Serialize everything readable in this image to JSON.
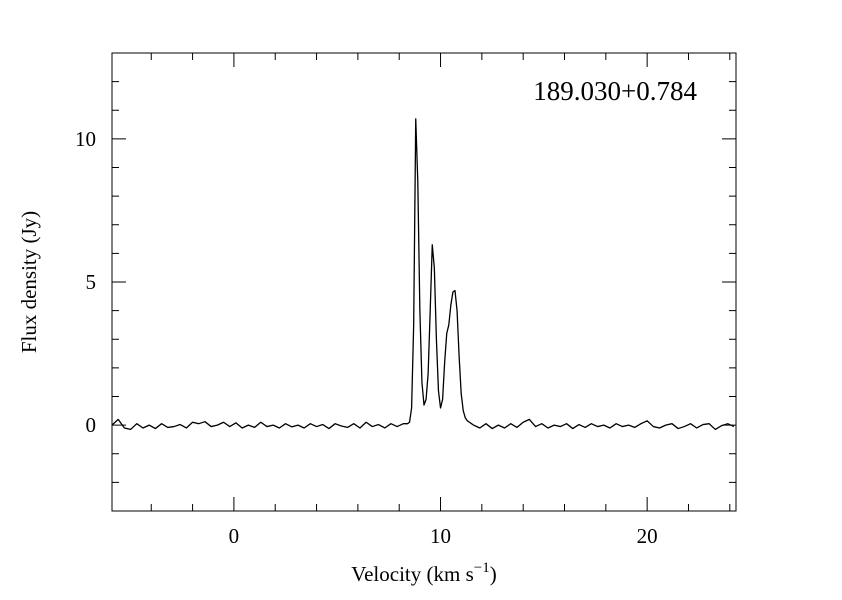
{
  "chart_data": {
    "type": "line",
    "annotation": "189.030+0.784",
    "x_label": "Velocity (km s",
    "x_label_sup": "−1",
    "x_label_end": ")",
    "y_label": "Flux density (Jy)",
    "color": "#000000",
    "xlim": [
      -5.9,
      24.3
    ],
    "ylim": [
      -3,
      13
    ],
    "xticks": [
      0,
      10,
      20
    ],
    "yticks": [
      0,
      5,
      10
    ],
    "xminorticks": [
      -4,
      -2,
      2,
      4,
      6,
      8,
      12,
      14,
      16,
      18,
      22,
      24
    ],
    "yminorticks": [
      -2,
      -1,
      1,
      2,
      3,
      4,
      6,
      7,
      8,
      9,
      11,
      12
    ],
    "x": [
      -5.9,
      -5.6,
      -5.3,
      -5.0,
      -4.7,
      -4.4,
      -4.1,
      -3.8,
      -3.5,
      -3.2,
      -2.9,
      -2.6,
      -2.3,
      -2.0,
      -1.7,
      -1.4,
      -1.1,
      -0.8,
      -0.5,
      -0.2,
      0.1,
      0.4,
      0.7,
      1.0,
      1.3,
      1.6,
      1.9,
      2.2,
      2.5,
      2.8,
      3.1,
      3.4,
      3.7,
      4.0,
      4.3,
      4.6,
      4.9,
      5.2,
      5.5,
      5.8,
      6.1,
      6.4,
      6.7,
      7.0,
      7.3,
      7.6,
      7.9,
      8.2,
      8.4,
      8.5,
      8.6,
      8.7,
      8.8,
      8.9,
      9.0,
      9.1,
      9.2,
      9.3,
      9.4,
      9.5,
      9.6,
      9.7,
      9.8,
      9.9,
      10.0,
      10.1,
      10.2,
      10.3,
      10.4,
      10.5,
      10.6,
      10.7,
      10.8,
      10.9,
      11.0,
      11.1,
      11.2,
      11.3,
      11.4,
      11.5,
      11.6,
      11.9,
      12.2,
      12.5,
      12.8,
      13.1,
      13.4,
      13.7,
      14.0,
      14.3,
      14.6,
      14.9,
      15.2,
      15.5,
      15.8,
      16.1,
      16.4,
      16.7,
      17.0,
      17.3,
      17.6,
      17.9,
      18.2,
      18.5,
      18.8,
      19.1,
      19.4,
      19.7,
      20.0,
      20.3,
      20.6,
      20.9,
      21.2,
      21.5,
      21.8,
      22.1,
      22.4,
      22.7,
      23.0,
      23.3,
      23.6,
      23.9,
      24.2
    ],
    "values": [
      0.0,
      0.2,
      -0.1,
      -0.15,
      0.05,
      -0.1,
      0.0,
      -0.12,
      0.05,
      -0.08,
      -0.05,
      0.02,
      -0.1,
      0.1,
      0.05,
      0.12,
      -0.05,
      0.0,
      0.1,
      -0.05,
      0.08,
      -0.1,
      0.0,
      -0.08,
      0.1,
      -0.05,
      0.0,
      -0.1,
      0.05,
      -0.06,
      0.0,
      -0.1,
      0.05,
      -0.05,
      0.02,
      -0.12,
      0.05,
      -0.03,
      -0.08,
      0.05,
      -0.1,
      0.1,
      -0.05,
      0.02,
      -0.1,
      0.05,
      -0.05,
      0.05,
      0.05,
      0.1,
      0.6,
      3.5,
      10.7,
      8.5,
      4.0,
      1.5,
      0.7,
      0.9,
      1.8,
      4.0,
      6.3,
      5.5,
      3.0,
      1.2,
      0.6,
      0.9,
      2.2,
      3.2,
      3.5,
      4.2,
      4.65,
      4.7,
      4.0,
      2.4,
      1.1,
      0.5,
      0.25,
      0.15,
      0.1,
      0.05,
      0.0,
      -0.1,
      0.05,
      -0.12,
      0.0,
      -0.1,
      0.05,
      -0.08,
      0.1,
      0.2,
      -0.05,
      0.05,
      -0.1,
      0.0,
      -0.05,
      0.05,
      -0.12,
      0.02,
      -0.08,
      0.05,
      -0.05,
      0.0,
      -0.1,
      0.05,
      -0.05,
      0.0,
      -0.08,
      0.05,
      0.15,
      -0.05,
      -0.1,
      0.0,
      0.05,
      -0.12,
      -0.05,
      0.05,
      -0.1,
      0.02,
      0.05,
      -0.15,
      -0.02,
      0.05,
      -0.05
    ]
  }
}
